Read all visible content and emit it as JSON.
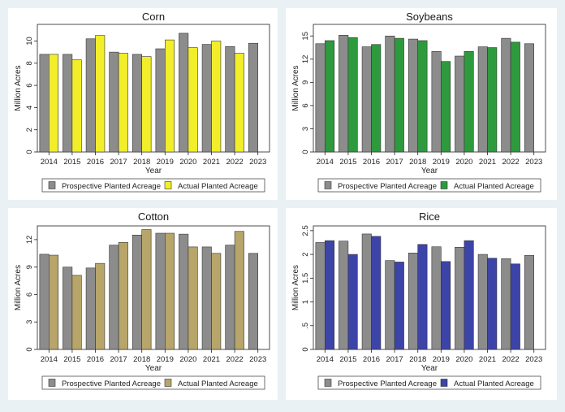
{
  "chart_data": [
    {
      "type": "bar",
      "title": "Corn",
      "xlabel": "Year",
      "ylabel": "Million Acres",
      "categories": [
        "2014",
        "2015",
        "2016",
        "2017",
        "2018",
        "2019",
        "2020",
        "2021",
        "2022",
        "2023"
      ],
      "yticks": [
        0,
        2,
        4,
        6,
        8,
        10
      ],
      "ylim": [
        0,
        11.5
      ],
      "series": [
        {
          "name": "Prospective Planted Acreage",
          "color": "#8c8c8c",
          "values": [
            8.8,
            8.8,
            10.2,
            9.0,
            8.8,
            9.3,
            10.7,
            9.7,
            9.5,
            9.8
          ]
        },
        {
          "name": "Actual Planted Acreage",
          "color": "#f2ee2a",
          "values": [
            8.8,
            8.3,
            10.5,
            8.9,
            8.6,
            10.1,
            9.4,
            10.0,
            8.9,
            null
          ]
        }
      ]
    },
    {
      "type": "bar",
      "title": "Soybeans",
      "xlabel": "Year",
      "ylabel": "Million Acres",
      "categories": [
        "2014",
        "2015",
        "2016",
        "2017",
        "2018",
        "2019",
        "2020",
        "2021",
        "2022",
        "2023"
      ],
      "yticks": [
        0,
        3,
        6,
        9,
        12,
        15
      ],
      "ylim": [
        0,
        16.5
      ],
      "series": [
        {
          "name": "Prospective Planted Acreage",
          "color": "#8c8c8c",
          "values": [
            14.0,
            15.1,
            13.6,
            15.0,
            14.6,
            13.0,
            12.4,
            13.6,
            14.7,
            14.0
          ]
        },
        {
          "name": "Actual Planted Acreage",
          "color": "#2e9a3e",
          "values": [
            14.4,
            14.8,
            13.9,
            14.7,
            14.4,
            11.7,
            13.0,
            13.5,
            14.2,
            null
          ]
        }
      ]
    },
    {
      "type": "bar",
      "title": "Cotton",
      "xlabel": "Year",
      "ylabel": "Million Acres",
      "categories": [
        "2014",
        "2015",
        "2016",
        "2017",
        "2018",
        "2019",
        "2020",
        "2021",
        "2022",
        "2023"
      ],
      "yticks": [
        0,
        3,
        6,
        9,
        12
      ],
      "ylim": [
        0,
        13.5
      ],
      "series": [
        {
          "name": "Prospective Planted Acreage",
          "color": "#8c8c8c",
          "values": [
            10.4,
            9.0,
            8.9,
            11.4,
            12.5,
            12.7,
            12.6,
            11.2,
            11.4,
            10.5
          ]
        },
        {
          "name": "Actual Planted Acreage",
          "color": "#b8a56a",
          "values": [
            10.3,
            8.1,
            9.4,
            11.7,
            13.1,
            12.7,
            11.2,
            10.5,
            12.9,
            null
          ]
        }
      ]
    },
    {
      "type": "bar",
      "title": "Rice",
      "xlabel": "Year",
      "ylabel": "Million Acres",
      "categories": [
        "2014",
        "2015",
        "2016",
        "2017",
        "2018",
        "2019",
        "2020",
        "2021",
        "2022",
        "2023"
      ],
      "yticks": [
        0,
        0.5,
        1,
        1.5,
        2,
        2.5
      ],
      "ytick_labels": [
        "0",
        ".5",
        "1",
        "1.5",
        "2",
        "2.5"
      ],
      "ylim": [
        0,
        2.6
      ],
      "series": [
        {
          "name": "Prospective Planted Acreage",
          "color": "#8c8c8c",
          "values": [
            2.25,
            2.28,
            2.43,
            1.87,
            2.03,
            2.16,
            2.15,
            2.0,
            1.91,
            1.98
          ]
        },
        {
          "name": "Actual Planted Acreage",
          "color": "#3d44a8",
          "values": [
            2.29,
            2.0,
            2.38,
            1.84,
            2.21,
            1.85,
            2.29,
            1.92,
            1.8,
            null
          ]
        }
      ]
    }
  ]
}
